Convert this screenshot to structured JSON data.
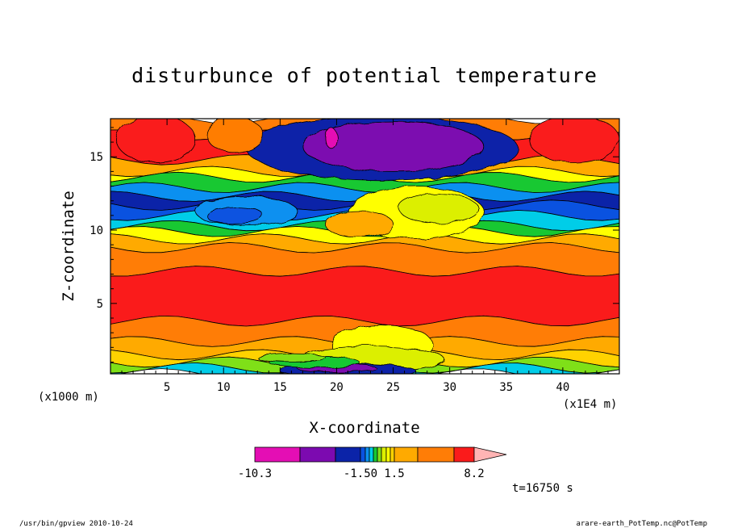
{
  "chart_data": {
    "type": "heatmap",
    "title": "disturbunce of potential temperature",
    "xlabel": "X-coordinate",
    "ylabel": "Z-coordinate",
    "x_units": "(x1E4 m)",
    "y_units": "(x1000 m)",
    "xlim": [
      0,
      45
    ],
    "ylim": [
      0.2,
      17.6
    ],
    "x_ticks": [
      5,
      10,
      15,
      20,
      25,
      30,
      35,
      40
    ],
    "y_ticks": [
      5,
      10,
      15
    ],
    "time_label": "t=16750 s",
    "colorbar": {
      "levels": [
        -10.3,
        -7.5,
        -5.0,
        -1.5,
        -1.2,
        -0.9,
        -0.6,
        -0.3,
        0.3,
        0.6,
        0.9,
        1.2,
        1.5,
        3.5,
        5.5,
        8.2
      ],
      "colors": [
        "#e40eb4",
        "#7c0ab0",
        "#0b23a8",
        "#0a52e0",
        "#0b90f0",
        "#00cde8",
        "#18c832",
        "#7fe018",
        "#dcef00",
        "#ffff00",
        "#ffd200",
        "#ffaa00",
        "#ff7d06",
        "#fa1b1b",
        "#fb7878",
        "#ffb4b4"
      ],
      "labels": [
        "-10.3",
        "-1.50",
        "1.5",
        "8.2"
      ],
      "extend": "max"
    },
    "grid": false
  },
  "footer": {
    "left": "/usr/bin/gpview  2010-10-24",
    "right": "arare-earth_PotTemp.nc@PotTemp"
  }
}
